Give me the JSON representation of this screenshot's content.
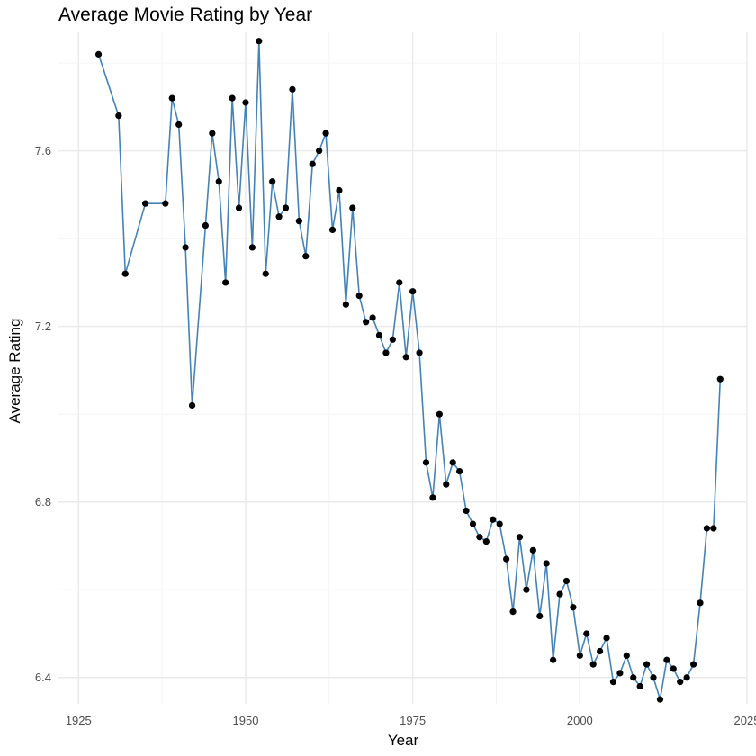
{
  "chart_data": {
    "type": "line",
    "title": "Average Movie Rating by Year",
    "xlabel": "Year",
    "ylabel": "Average Rating",
    "xlim": [
      1922,
      2025
    ],
    "ylim": [
      6.34,
      7.87
    ],
    "x_ticks": [
      1925,
      1950,
      1975,
      2000,
      2025
    ],
    "y_ticks": [
      6.4,
      6.8,
      7.2,
      7.6
    ],
    "grid": true,
    "legend": "none",
    "colors": {
      "line": "#4682b4",
      "points": "#000000",
      "grid_major": "#ebebeb",
      "grid_minor": "#f4f4f4",
      "tick_label": "#4d4d4d"
    },
    "series": [
      {
        "x": [
          1928,
          1931,
          1932,
          1935,
          1938,
          1939,
          1940,
          1941,
          1942,
          1944,
          1945,
          1946,
          1947,
          1948,
          1949,
          1950,
          1951,
          1952,
          1953,
          1954,
          1955,
          1956,
          1957,
          1958,
          1959,
          1960,
          1961,
          1962,
          1963,
          1964,
          1965,
          1966,
          1967,
          1968,
          1969,
          1970,
          1971,
          1972,
          1973,
          1974,
          1975,
          1976,
          1977,
          1978,
          1979,
          1980,
          1981,
          1982,
          1983,
          1984,
          1985,
          1986,
          1987,
          1988,
          1989,
          1990,
          1991,
          1992,
          1993,
          1994,
          1995,
          1996,
          1997,
          1998,
          1999,
          2000,
          2001,
          2002,
          2003,
          2004,
          2005,
          2006,
          2007,
          2008,
          2009,
          2010,
          2011,
          2012,
          2013,
          2014,
          2015,
          2016,
          2017,
          2018,
          2019,
          2020,
          2021
        ],
        "y": [
          7.82,
          7.68,
          7.32,
          7.48,
          7.48,
          7.72,
          7.66,
          7.38,
          7.02,
          7.43,
          7.64,
          7.53,
          7.3,
          7.72,
          7.47,
          7.71,
          7.38,
          7.85,
          7.32,
          7.53,
          7.45,
          7.47,
          7.74,
          7.44,
          7.36,
          7.57,
          7.6,
          7.64,
          7.42,
          7.51,
          7.25,
          7.47,
          7.27,
          7.21,
          7.22,
          7.18,
          7.14,
          7.17,
          7.3,
          7.13,
          7.28,
          7.14,
          6.89,
          6.81,
          7.0,
          6.84,
          6.89,
          6.87,
          6.78,
          6.75,
          6.72,
          6.71,
          6.76,
          6.75,
          6.67,
          6.55,
          6.72,
          6.6,
          6.69,
          6.54,
          6.66,
          6.44,
          6.59,
          6.62,
          6.56,
          6.45,
          6.5,
          6.43,
          6.46,
          6.49,
          6.39,
          6.41,
          6.45,
          6.4,
          6.38,
          6.43,
          6.4,
          6.35,
          6.44,
          6.42,
          6.39,
          6.4,
          6.43,
          6.57,
          6.74,
          6.74,
          7.08
        ]
      }
    ]
  }
}
